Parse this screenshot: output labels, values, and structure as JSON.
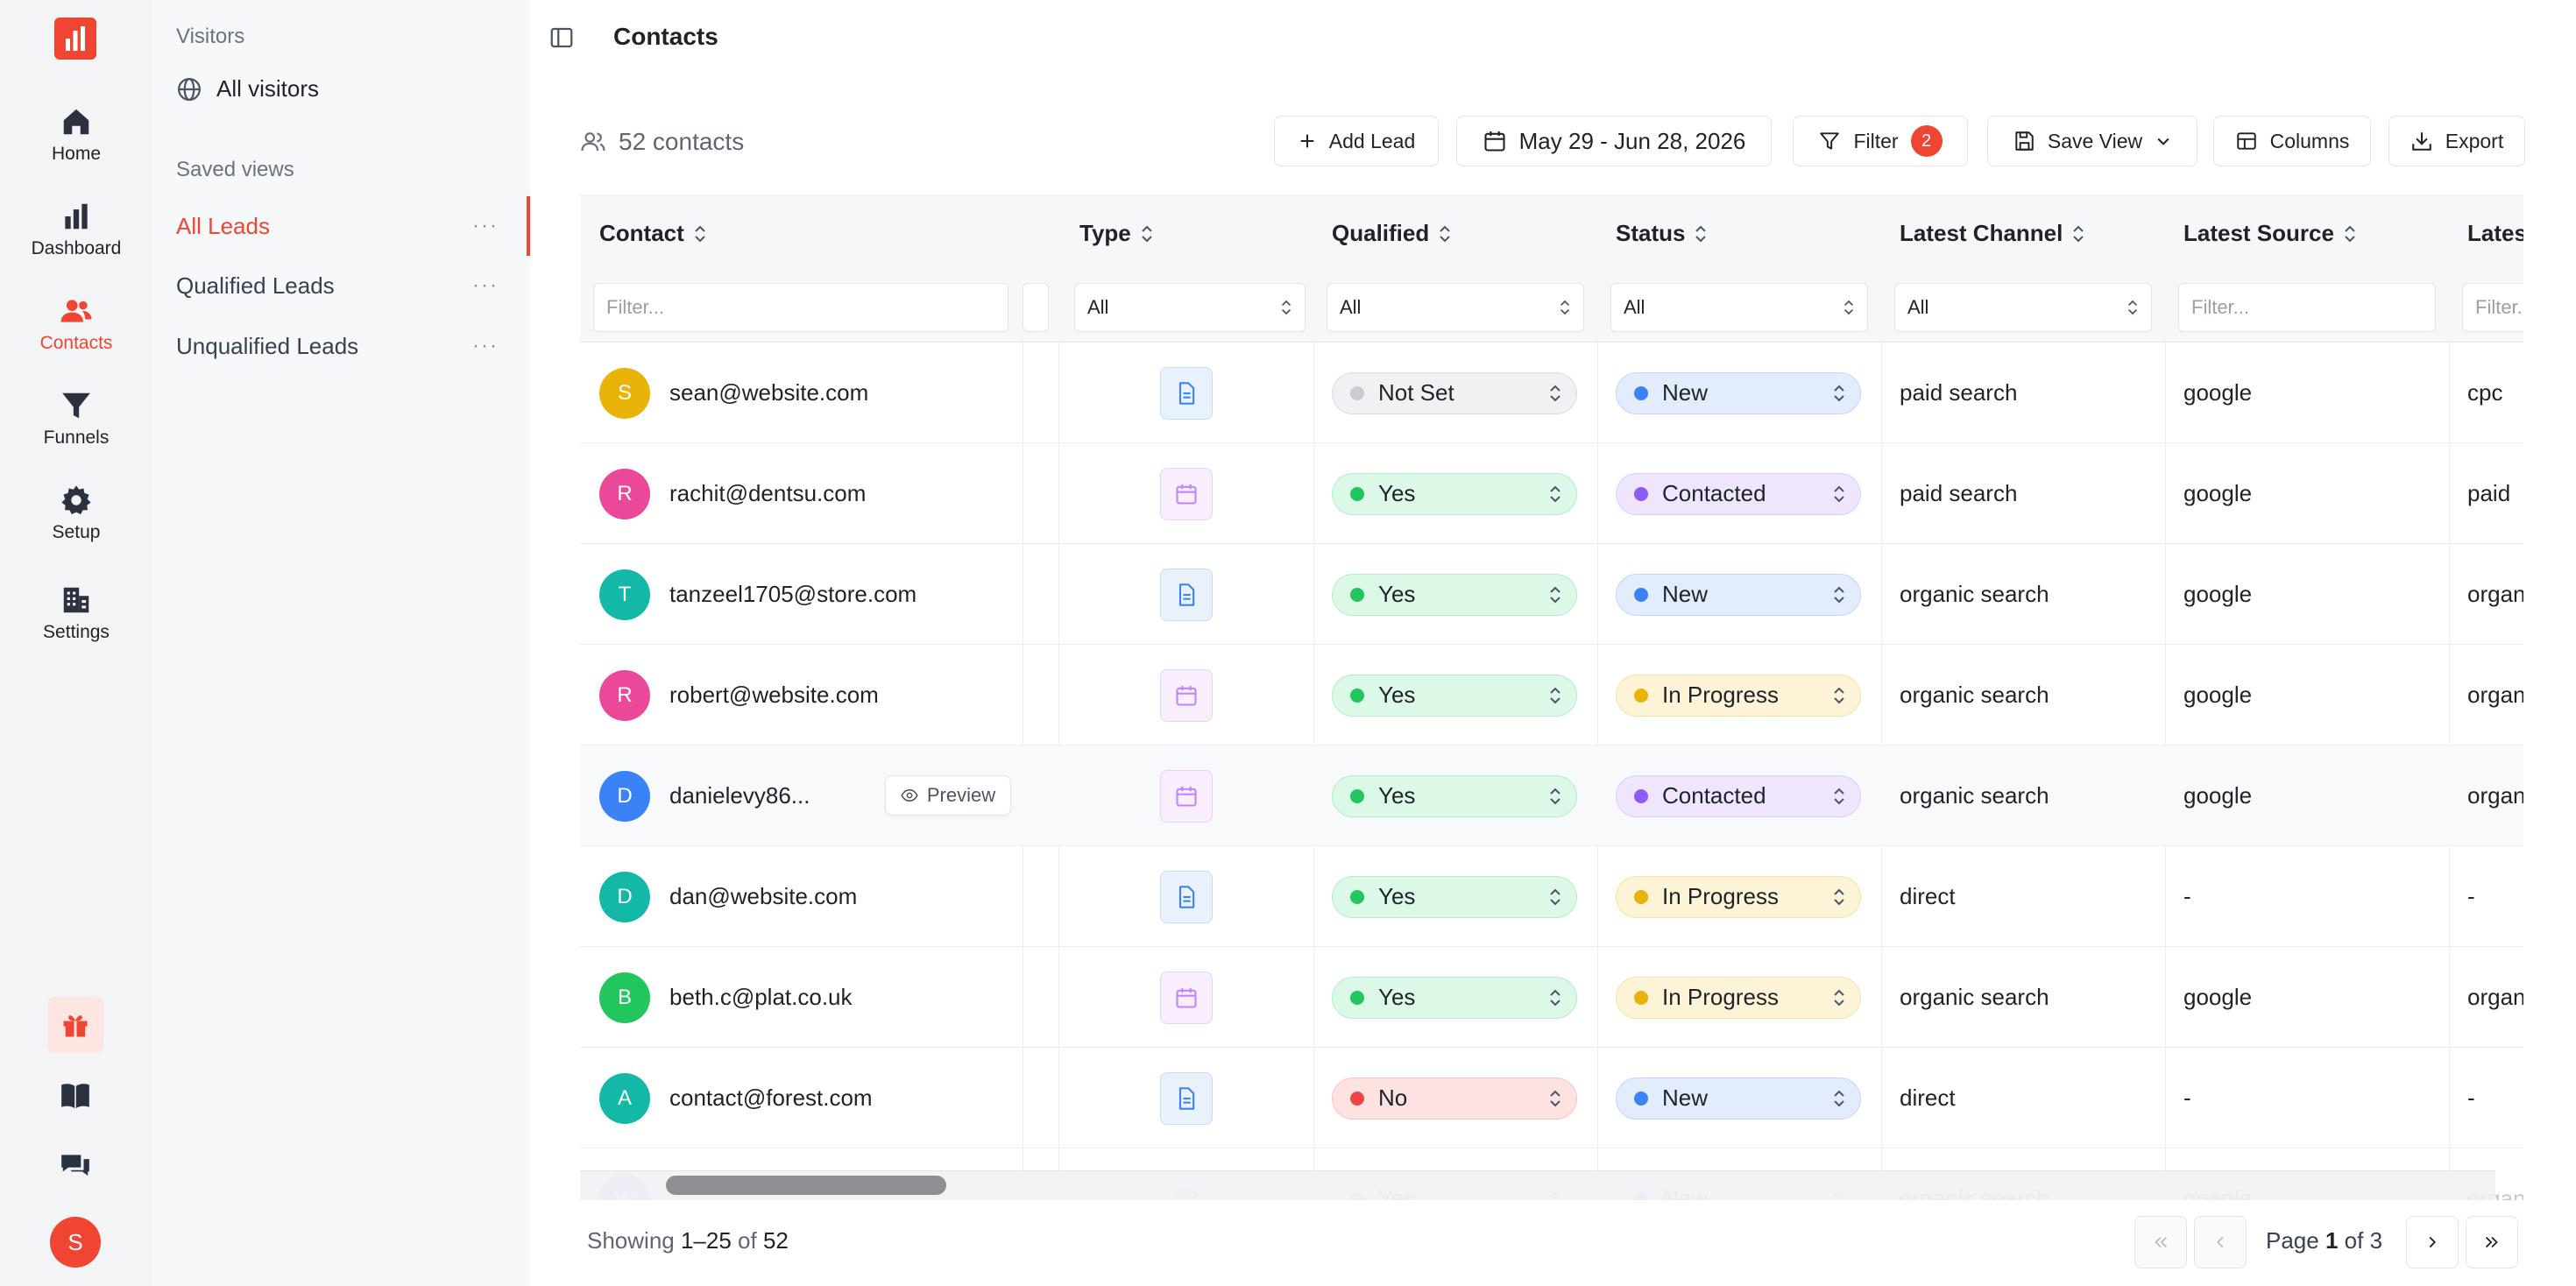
{
  "rail": {
    "nav": [
      {
        "label": "Home",
        "icon": "home-icon"
      },
      {
        "label": "Dashboard",
        "icon": "bar-chart-icon"
      },
      {
        "label": "Contacts",
        "icon": "users-icon"
      },
      {
        "label": "Funnels",
        "icon": "funnel-icon"
      },
      {
        "label": "Setup",
        "icon": "gear-icon"
      },
      {
        "label": "Settings",
        "icon": "building-icon"
      }
    ],
    "user_initial": "S",
    "accent": "#ef4532"
  },
  "sidebar": {
    "visitors_label": "Visitors",
    "all_visitors": "All visitors",
    "saved_views_label": "Saved views",
    "views": [
      {
        "label": "All Leads",
        "more": "···"
      },
      {
        "label": "Qualified Leads",
        "more": "···"
      },
      {
        "label": "Unqualified Leads",
        "more": "···"
      }
    ]
  },
  "header": {
    "title": "Contacts",
    "count": "52 contacts",
    "add_lead": "Add Lead",
    "date_range": "May 29 - Jun 28, 2026",
    "filter": "Filter",
    "filter_count": "2",
    "save_view": "Save View",
    "columns": "Columns",
    "export": "Export"
  },
  "table": {
    "columns": {
      "contact": "Contact",
      "type": "Type",
      "qualified": "Qualified",
      "status": "Status",
      "latest_channel": "Latest Channel",
      "latest_source": "Latest Source",
      "latest_medium": "Lates"
    },
    "filters": {
      "text_placeholder": "Filter...",
      "text_placeholder_short": "Filter...",
      "all": "All"
    },
    "preview_label": "Preview",
    "rows": [
      {
        "initial": "S",
        "avatar_color": "#eab308",
        "email": "sean@website.com",
        "type": "doc",
        "qualified": "Not Set",
        "q_style": "notset",
        "status": "New",
        "s_style": "new",
        "channel": "paid search",
        "source": "google",
        "medium": "cpc"
      },
      {
        "initial": "R",
        "avatar_color": "#ec4899",
        "email": "rachit@dentsu.com",
        "type": "cal",
        "qualified": "Yes",
        "q_style": "yes",
        "status": "Contacted",
        "s_style": "contacted",
        "channel": "paid search",
        "source": "google",
        "medium": "paid"
      },
      {
        "initial": "T",
        "avatar_color": "#14b8a6",
        "email": "tanzeel1705@store.com",
        "type": "doc",
        "qualified": "Yes",
        "q_style": "yes",
        "status": "New",
        "s_style": "new",
        "channel": "organic search",
        "source": "google",
        "medium": "organ"
      },
      {
        "initial": "R",
        "avatar_color": "#ec4899",
        "email": "robert@website.com",
        "type": "cal",
        "qualified": "Yes",
        "q_style": "yes",
        "status": "In Progress",
        "s_style": "progress",
        "channel": "organic search",
        "source": "google",
        "medium": "organ"
      },
      {
        "initial": "D",
        "avatar_color": "#3b82f6",
        "email": "danielevy86...",
        "type": "cal",
        "qualified": "Yes",
        "q_style": "yes",
        "status": "Contacted",
        "s_style": "contacted",
        "channel": "organic search",
        "source": "google",
        "medium": "organ"
      },
      {
        "initial": "D",
        "avatar_color": "#14b8a6",
        "email": "dan@website.com",
        "type": "doc",
        "qualified": "Yes",
        "q_style": "yes",
        "status": "In Progress",
        "s_style": "progress",
        "channel": "direct",
        "source": "-",
        "medium": "-"
      },
      {
        "initial": "B",
        "avatar_color": "#22c55e",
        "email": "beth.c@plat.co.uk",
        "type": "cal",
        "qualified": "Yes",
        "q_style": "yes",
        "status": "In Progress",
        "s_style": "progress",
        "channel": "organic search",
        "source": "google",
        "medium": "organ"
      },
      {
        "initial": "A",
        "avatar_color": "#14b8a6",
        "email": "contact@forest.com",
        "type": "doc",
        "qualified": "No",
        "q_style": "no",
        "status": "New",
        "s_style": "new",
        "channel": "direct",
        "source": "-",
        "medium": "-"
      },
      {
        "initial": "W",
        "avatar_color": "#a855f7",
        "email": "",
        "type": "cal",
        "qualified": "Yes",
        "q_style": "yes",
        "status": "New",
        "s_style": "new",
        "channel": "organic search",
        "source": "google",
        "medium": "organ"
      }
    ]
  },
  "pill_styles": {
    "notset": {
      "bg": "#f0f1f3",
      "border": "#d9dce0",
      "dot": "#c9ccd1"
    },
    "yes": {
      "bg": "#dcf8e7",
      "border": "#b5ecc9",
      "dot": "#22c55e"
    },
    "no": {
      "bg": "#fde2e2",
      "border": "#f8c4c4",
      "dot": "#ef4444"
    },
    "new": {
      "bg": "#e3ecfd",
      "border": "#c3d5fb",
      "dot": "#3b82f6"
    },
    "contacted": {
      "bg": "#efe6fd",
      "border": "#dccbfb",
      "dot": "#8b5cf6"
    },
    "progress": {
      "bg": "#fdf4d8",
      "border": "#f6e2a6",
      "dot": "#eab308"
    }
  },
  "footer": {
    "showing_prefix": "Showing ",
    "showing_range": "1–25",
    "showing_of": " of ",
    "showing_total": "52",
    "page_prefix": "Page ",
    "page_current": "1",
    "page_of": " of ",
    "page_total": "3"
  }
}
